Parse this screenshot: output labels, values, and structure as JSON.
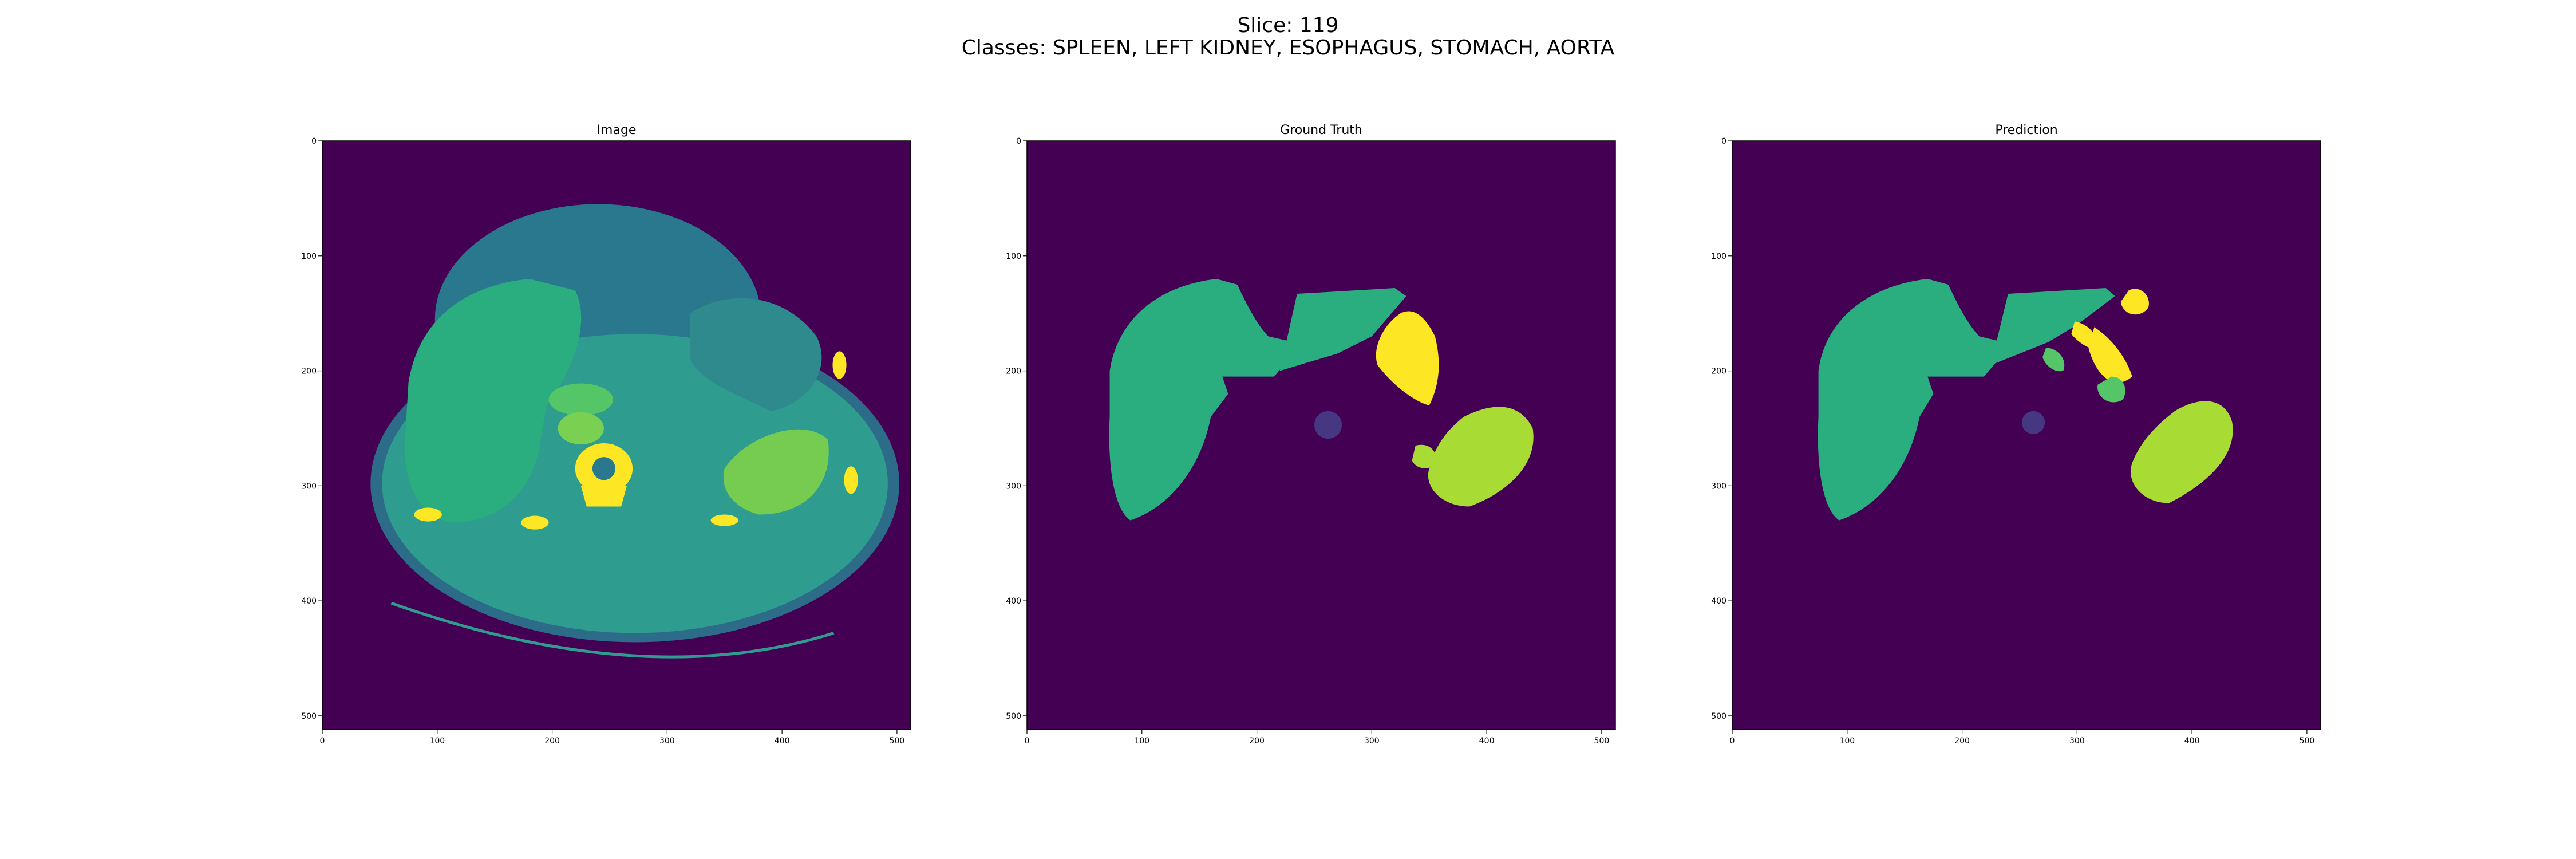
{
  "figure": {
    "suptitle_line1": "Slice: 119",
    "suptitle_line2": "Classes: SPLEEN, LEFT KIDNEY, ESOPHAGUS, STOMACH, AORTA"
  },
  "colors": {
    "background_class": "#440154",
    "esophagus_dark": "#453781",
    "organ_green": "#2aae7f",
    "kidney_green": "#21a685",
    "light_green": "#55c667",
    "lime": "#a8db34",
    "yellow": "#fde725",
    "ct_body": "#2e9c8e",
    "ct_skin": "#2a788e"
  },
  "panels": [
    {
      "title": "Image",
      "kind": "ct_image"
    },
    {
      "title": "Ground Truth",
      "kind": "mask_gt"
    },
    {
      "title": "Prediction",
      "kind": "mask_pred"
    }
  ],
  "axes": {
    "xticks": [
      "0",
      "100",
      "200",
      "300",
      "400",
      "500"
    ],
    "yticks": [
      "0",
      "100",
      "200",
      "300",
      "400",
      "500"
    ],
    "xlim": [
      0,
      512
    ],
    "ylim": [
      512,
      0
    ]
  }
}
